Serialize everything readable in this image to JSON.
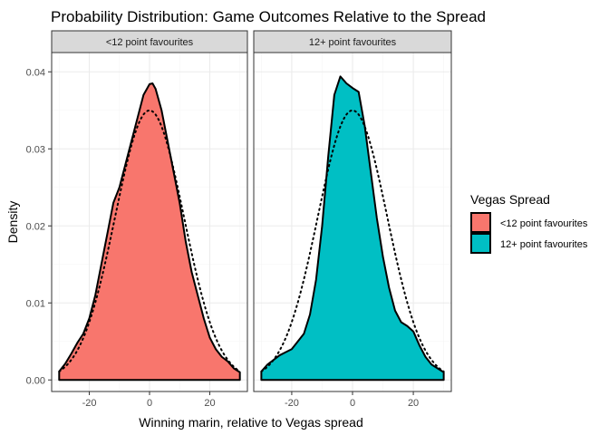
{
  "colors": {
    "series_a": "#F8766D",
    "series_b": "#00BFC4",
    "strip_bg": "#D9D9D9",
    "grid_major": "#EBEBEB",
    "grid_minor": "#F5F5F5"
  },
  "chart_data": {
    "type": "area",
    "title": "Probability Distribution: Game Outcomes Relative to the Spread",
    "xlabel": "Winning marin, relative to Vegas spread",
    "ylabel": "Density",
    "xlim": [
      -32.5,
      32.5
    ],
    "ylim": [
      -0.0015,
      0.0425
    ],
    "x_ticks": [
      -20,
      0,
      20
    ],
    "x_tick_labels": [
      "-20",
      "0",
      "20"
    ],
    "y_ticks": [
      0.0,
      0.01,
      0.02,
      0.03,
      0.04
    ],
    "y_tick_labels": [
      "0.00",
      "0.01",
      "0.02",
      "0.03",
      "0.04"
    ],
    "grid": true,
    "legend": {
      "title": "Vegas Spread",
      "position": "right",
      "entries": [
        "<12 point favourites",
        "12+ point favourites"
      ]
    },
    "normal_reference": {
      "style": "dotted",
      "mean": 0,
      "sd": 11.4
    },
    "panels": [
      {
        "strip": "<12 point favourites",
        "series": "<12 point favourites",
        "x": [
          -30,
          -28,
          -26,
          -24,
          -22,
          -20,
          -18,
          -16,
          -14,
          -12,
          -10,
          -8,
          -6,
          -4,
          -2,
          0,
          1,
          2,
          4,
          6,
          8,
          10,
          12,
          14,
          16,
          18,
          20,
          22,
          24,
          26,
          28,
          30
        ],
        "y": [
          0.0011,
          0.0021,
          0.0034,
          0.0048,
          0.006,
          0.008,
          0.011,
          0.015,
          0.019,
          0.023,
          0.025,
          0.028,
          0.031,
          0.034,
          0.037,
          0.0384,
          0.0385,
          0.0378,
          0.035,
          0.031,
          0.027,
          0.023,
          0.018,
          0.014,
          0.011,
          0.008,
          0.0055,
          0.004,
          0.003,
          0.0024,
          0.0015,
          0.001
        ]
      },
      {
        "strip": "12+ point favourites",
        "series": "12+ point favourites",
        "x": [
          -30,
          -28,
          -26,
          -24,
          -22,
          -20,
          -18,
          -16,
          -14,
          -12,
          -10,
          -8,
          -6,
          -4,
          -2,
          0,
          2,
          4,
          6,
          8,
          10,
          12,
          14,
          16,
          18,
          20,
          22,
          24,
          26,
          28,
          30
        ],
        "y": [
          0.0011,
          0.002,
          0.0026,
          0.0032,
          0.0036,
          0.004,
          0.005,
          0.006,
          0.0085,
          0.013,
          0.02,
          0.029,
          0.037,
          0.0394,
          0.0385,
          0.0379,
          0.0374,
          0.033,
          0.027,
          0.021,
          0.016,
          0.012,
          0.009,
          0.0075,
          0.007,
          0.0063,
          0.0045,
          0.003,
          0.002,
          0.0015,
          0.001
        ]
      }
    ]
  }
}
